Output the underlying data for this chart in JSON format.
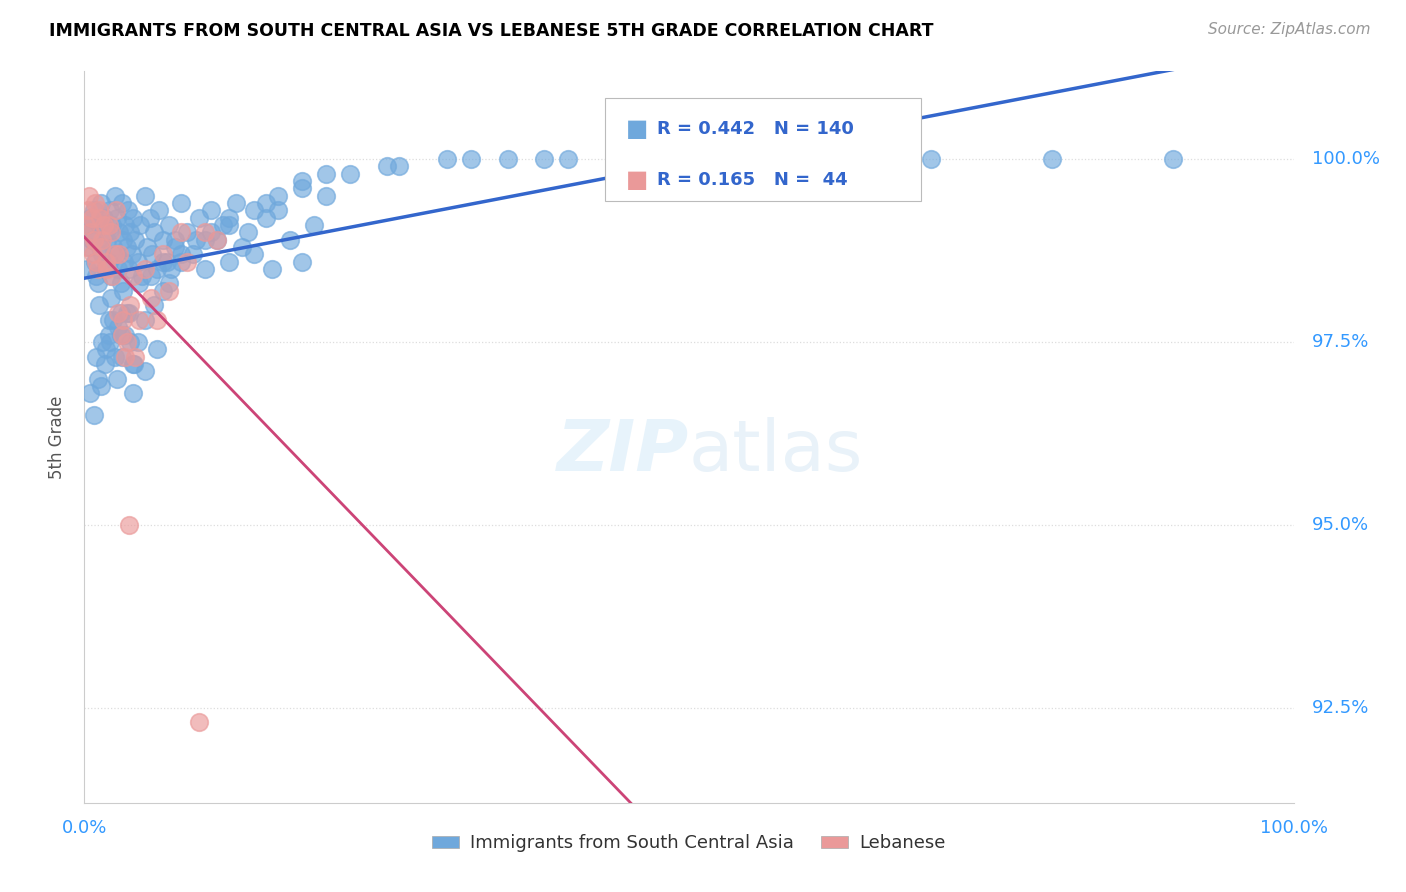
{
  "title": "IMMIGRANTS FROM SOUTH CENTRAL ASIA VS LEBANESE 5TH GRADE CORRELATION CHART",
  "source": "Source: ZipAtlas.com",
  "ylabel": "5th Grade",
  "ytick_values": [
    92.5,
    95.0,
    97.5,
    100.0
  ],
  "legend_blue_r": "0.442",
  "legend_blue_n": "140",
  "legend_pink_r": "0.165",
  "legend_pink_n": "44",
  "legend_blue_label": "Immigrants from South Central Asia",
  "legend_pink_label": "Lebanese",
  "blue_color": "#6fa8dc",
  "pink_color": "#ea9999",
  "blue_line_color": "#3366cc",
  "pink_line_color": "#cc4477",
  "legend_r_color": "#3366cc",
  "title_color": "#000000",
  "source_color": "#999999",
  "axis_label_color": "#3399ff",
  "grid_color": "#dddddd",
  "xmin": 0.0,
  "xmax": 100.0,
  "ymin": 91.2,
  "ymax": 101.2,
  "blue_x": [
    0.2,
    0.3,
    0.4,
    0.5,
    0.6,
    0.7,
    0.8,
    0.9,
    1.0,
    1.1,
    1.2,
    1.3,
    1.4,
    1.5,
    1.6,
    1.7,
    1.8,
    1.9,
    2.0,
    2.1,
    2.2,
    2.3,
    2.4,
    2.5,
    2.6,
    2.7,
    2.8,
    2.9,
    3.0,
    3.1,
    3.2,
    3.3,
    3.4,
    3.5,
    3.6,
    3.7,
    3.8,
    3.9,
    4.0,
    4.2,
    4.4,
    4.6,
    4.8,
    5.0,
    5.2,
    5.4,
    5.6,
    5.8,
    6.0,
    6.2,
    6.5,
    6.8,
    7.0,
    7.5,
    8.0,
    8.5,
    9.0,
    9.5,
    10.0,
    10.5,
    11.0,
    11.5,
    12.0,
    12.5,
    13.0,
    13.5,
    14.0,
    15.0,
    15.5,
    16.0,
    17.0,
    18.0,
    19.0,
    20.0,
    1.5,
    2.0,
    2.5,
    3.0,
    3.5,
    4.0,
    1.2,
    1.8,
    2.2,
    2.8,
    3.2,
    3.8,
    4.5,
    5.5,
    6.5,
    7.5,
    0.5,
    0.8,
    1.1,
    1.4,
    1.7,
    2.1,
    2.4,
    2.7,
    3.1,
    3.4,
    3.7,
    4.1,
    4.4,
    5.0,
    5.8,
    6.5,
    7.2,
    8.0,
    9.2,
    10.5,
    12.0,
    14.0,
    16.0,
    18.0,
    20.0,
    25.0,
    30.0,
    35.0,
    40.0,
    50.0,
    60.0,
    70.0,
    80.0,
    90.0,
    1.0,
    2.0,
    3.0,
    4.0,
    5.0,
    6.0,
    7.0,
    8.0,
    10.0,
    12.0,
    15.0,
    18.0,
    22.0,
    26.0,
    32.0,
    38.0
  ],
  "blue_y": [
    98.5,
    99.1,
    98.8,
    99.2,
    98.9,
    99.0,
    99.3,
    98.6,
    98.4,
    98.3,
    99.1,
    98.8,
    99.4,
    98.7,
    99.2,
    98.5,
    99.0,
    98.9,
    98.6,
    99.3,
    98.4,
    99.1,
    98.8,
    99.5,
    98.7,
    99.2,
    98.5,
    99.0,
    98.3,
    99.4,
    98.9,
    98.6,
    99.1,
    98.8,
    99.3,
    98.5,
    99.0,
    98.7,
    99.2,
    98.9,
    98.6,
    99.1,
    98.4,
    99.5,
    98.8,
    99.2,
    98.7,
    99.0,
    98.5,
    99.3,
    98.9,
    98.6,
    99.1,
    98.8,
    99.4,
    99.0,
    98.7,
    99.2,
    98.5,
    99.3,
    98.9,
    99.1,
    98.6,
    99.4,
    98.8,
    99.0,
    98.7,
    99.2,
    98.5,
    99.3,
    98.9,
    98.6,
    99.1,
    99.5,
    97.5,
    97.8,
    97.3,
    97.6,
    97.9,
    97.2,
    98.0,
    97.4,
    98.1,
    97.7,
    98.2,
    97.5,
    98.3,
    98.4,
    98.6,
    98.9,
    96.8,
    96.5,
    97.0,
    96.9,
    97.2,
    97.5,
    97.8,
    97.0,
    97.3,
    97.6,
    97.9,
    97.2,
    97.5,
    97.8,
    98.0,
    98.2,
    98.5,
    98.7,
    98.9,
    99.0,
    99.2,
    99.3,
    99.5,
    99.7,
    99.8,
    99.9,
    100.0,
    100.0,
    100.0,
    100.0,
    100.0,
    100.0,
    100.0,
    100.0,
    97.3,
    97.6,
    97.9,
    96.8,
    97.1,
    97.4,
    98.3,
    98.6,
    98.9,
    99.1,
    99.4,
    99.6,
    99.8,
    99.9,
    100.0,
    100.0
  ],
  "pink_x": [
    0.1,
    0.2,
    0.3,
    0.5,
    0.7,
    0.9,
    1.1,
    1.3,
    1.5,
    1.8,
    2.0,
    2.3,
    2.6,
    2.9,
    3.2,
    3.5,
    3.8,
    4.2,
    5.0,
    6.0,
    7.0,
    8.5,
    10.0,
    0.4,
    0.6,
    0.8,
    1.0,
    1.2,
    1.4,
    1.6,
    1.9,
    2.2,
    2.5,
    2.8,
    3.1,
    3.4,
    3.7,
    4.0,
    4.5,
    5.5,
    6.5,
    8.0,
    9.5,
    11.0
  ],
  "pink_y": [
    99.1,
    98.8,
    99.3,
    99.0,
    98.7,
    99.4,
    98.5,
    99.2,
    98.9,
    98.6,
    99.1,
    98.4,
    99.3,
    98.7,
    97.8,
    97.5,
    98.0,
    97.3,
    98.5,
    97.8,
    98.2,
    98.6,
    99.0,
    99.5,
    99.2,
    98.9,
    98.6,
    99.3,
    98.8,
    99.1,
    98.5,
    99.0,
    98.7,
    97.9,
    97.6,
    97.3,
    95.0,
    98.4,
    97.8,
    98.1,
    98.7,
    99.0,
    92.3,
    98.9
  ]
}
